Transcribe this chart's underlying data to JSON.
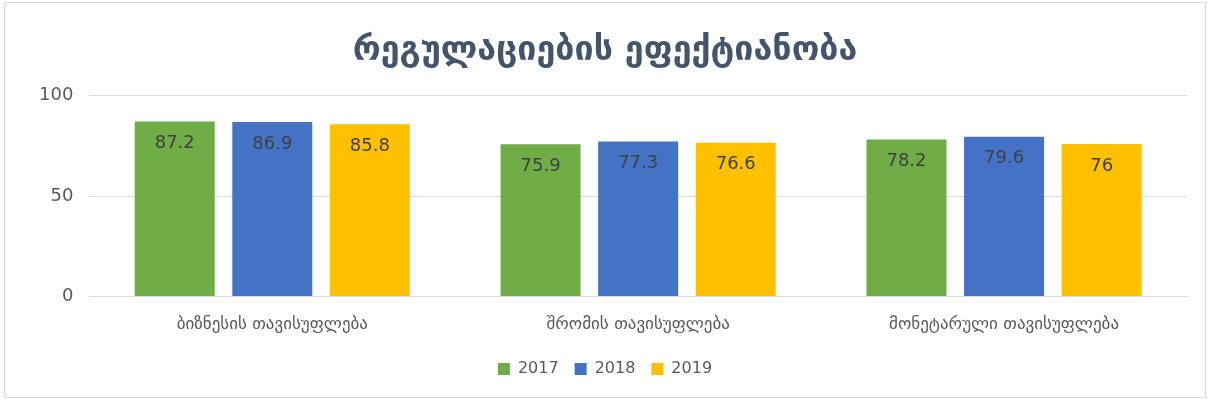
{
  "chart_data": {
    "type": "bar",
    "title": "რეგულაციების ეფექტიანობა",
    "categories": [
      "ბიზნესის თავისუფლება",
      "შრომის თავისუფლება",
      "მონეტარული თავისუფლება"
    ],
    "series": [
      {
        "name": "2017",
        "color": "#70ad47",
        "values": [
          87.2,
          75.9,
          78.2
        ]
      },
      {
        "name": "2018",
        "color": "#4472c4",
        "values": [
          86.9,
          77.3,
          79.6
        ]
      },
      {
        "name": "2019",
        "color": "#ffc000",
        "values": [
          85.8,
          76.6,
          76
        ]
      }
    ],
    "ylim": [
      0,
      100
    ],
    "yticks": [
      0,
      50,
      100
    ],
    "grid": "y",
    "legend": "bottom",
    "data_labels": true
  }
}
